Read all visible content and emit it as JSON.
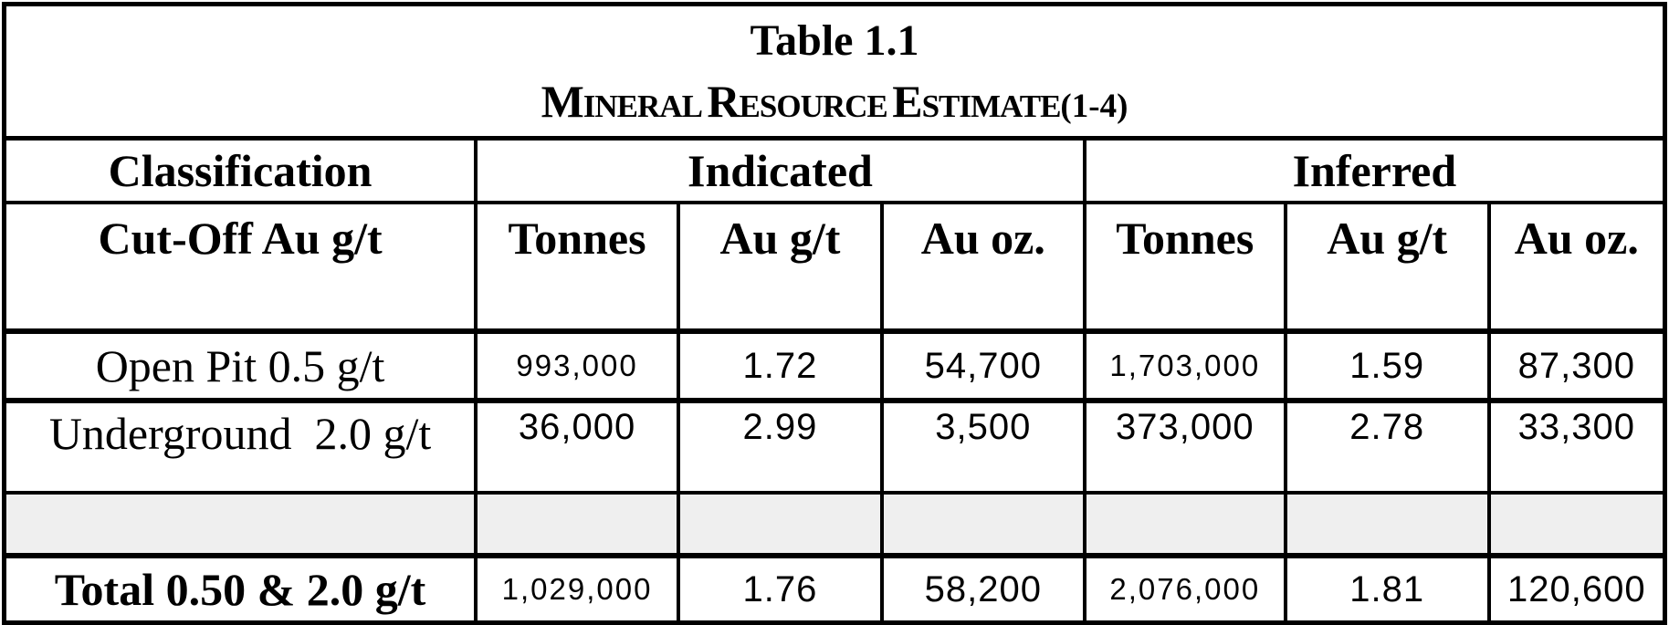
{
  "title": {
    "line1": "Table 1.1",
    "line2": "Mineral Resource Estimate",
    "superscript": "(1-4)"
  },
  "header": {
    "classification": "Classification",
    "indicated": "Indicated",
    "inferred": "Inferred",
    "cutoff": "Cut-Off Au g/t",
    "columns": [
      "Tonnes",
      "Au g/t",
      "Au oz.",
      "Tonnes",
      "Au g/t",
      "Au oz."
    ]
  },
  "rows": [
    {
      "label": "Open Pit 0.5 g/t",
      "style": "normal",
      "cells": [
        {
          "value": "993,000",
          "shrink": true
        },
        {
          "value": "1.72",
          "shrink": false
        },
        {
          "value": "54,700",
          "shrink": false
        },
        {
          "value": "1,703,000",
          "shrink": true
        },
        {
          "value": "1.59",
          "shrink": false
        },
        {
          "value": "87,300",
          "shrink": false
        }
      ]
    },
    {
      "label": "Underground  2.0 g/t",
      "style": "normal",
      "cells": [
        {
          "value": "36,000",
          "shrink": false
        },
        {
          "value": "2.99",
          "shrink": false
        },
        {
          "value": "3,500",
          "shrink": false
        },
        {
          "value": "373,000",
          "shrink": false
        },
        {
          "value": "2.78",
          "shrink": false
        },
        {
          "value": "33,300",
          "shrink": false
        }
      ]
    },
    {
      "label": "",
      "style": "spacer",
      "cells": [
        {
          "value": "",
          "shrink": false
        },
        {
          "value": "",
          "shrink": false
        },
        {
          "value": "",
          "shrink": false
        },
        {
          "value": "",
          "shrink": false
        },
        {
          "value": "",
          "shrink": false
        },
        {
          "value": "",
          "shrink": false
        }
      ]
    },
    {
      "label": "Total 0.50 & 2.0 g/t",
      "style": "total",
      "cells": [
        {
          "value": "1,029,000",
          "shrink": true
        },
        {
          "value": "1.76",
          "shrink": false
        },
        {
          "value": "58,200",
          "shrink": false
        },
        {
          "value": "2,076,000",
          "shrink": true
        },
        {
          "value": "1.81",
          "shrink": false
        },
        {
          "value": "120,600",
          "shrink": false
        }
      ]
    }
  ],
  "colors": {
    "border": "#000000",
    "text": "#000000",
    "page_background": "#ffffff",
    "spacer_row_background": "#efefef"
  }
}
